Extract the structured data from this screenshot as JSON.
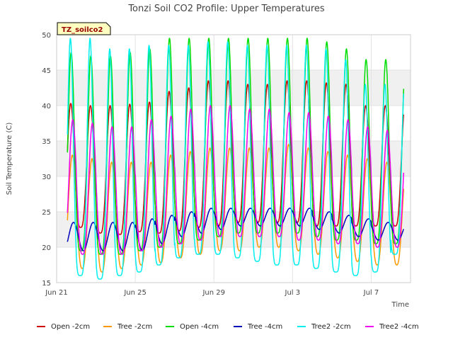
{
  "chart_data": {
    "type": "line",
    "title": "Tonzi Soil CO2 Profile: Upper Temperatures",
    "badge": "TZ_soilco2",
    "xlabel": "Time",
    "ylabel": "Soil Temperature (C)",
    "ylim": [
      15,
      50
    ],
    "yticks": [
      15,
      20,
      25,
      30,
      35,
      40,
      45,
      50
    ],
    "xlim": [
      "2021-06-21",
      "2021-07-09"
    ],
    "xticks": [
      {
        "date": "2021-06-21",
        "label": "Jun 21"
      },
      {
        "date": "2021-06-25",
        "label": "Jun 25"
      },
      {
        "date": "2021-06-29",
        "label": "Jun 29"
      },
      {
        "date": "2021-07-03",
        "label": "Jul 3"
      },
      {
        "date": "2021-07-07",
        "label": "Jul 7"
      }
    ],
    "grid": true,
    "legend_position": "bottom",
    "x_dates": [
      "2021-06-21",
      "2021-06-22",
      "2021-06-23",
      "2021-06-24",
      "2021-06-25",
      "2021-06-26",
      "2021-06-27",
      "2021-06-28",
      "2021-06-29",
      "2021-06-30",
      "2021-07-01",
      "2021-07-02",
      "2021-07-03",
      "2021-07-04",
      "2021-07-05",
      "2021-07-06",
      "2021-07-07",
      "2021-07-08"
    ],
    "series": [
      {
        "name": "Open -2cm",
        "color": "#cc0000",
        "daily_min": [
          22.5,
          22.8,
          22.0,
          21.8,
          22.2,
          22.0,
          22.3,
          22.8,
          23.0,
          23.5,
          23.5,
          23.5,
          23.5,
          23.0,
          23.0,
          23.0,
          23.0,
          23.0
        ],
        "daily_max": [
          40.3,
          40.0,
          40.0,
          40.2,
          40.5,
          42.0,
          42.5,
          43.5,
          43.5,
          43.0,
          43.0,
          43.5,
          43.5,
          43.2,
          43.0,
          40.0,
          40.0,
          40.0
        ]
      },
      {
        "name": "Tree -2cm",
        "color": "#ff9900",
        "daily_min": [
          17.5,
          17.0,
          16.5,
          17.0,
          17.5,
          17.8,
          18.5,
          19.0,
          19.5,
          19.5,
          20.0,
          20.0,
          19.5,
          19.0,
          18.5,
          18.0,
          17.5,
          17.5
        ],
        "daily_max": [
          33.0,
          32.5,
          32.0,
          32.0,
          32.0,
          33.0,
          33.5,
          34.0,
          34.0,
          34.0,
          34.0,
          34.5,
          34.0,
          33.5,
          33.0,
          32.5,
          32.0,
          32.0
        ]
      },
      {
        "name": "Open -4cm",
        "color": "#00dd00",
        "daily_min": [
          20.0,
          19.5,
          19.0,
          19.0,
          19.5,
          20.0,
          20.5,
          21.0,
          21.5,
          22.0,
          22.0,
          22.0,
          22.0,
          21.5,
          21.0,
          21.0,
          20.5,
          20.5
        ],
        "daily_max": [
          47.5,
          47.0,
          47.0,
          47.5,
          48.0,
          49.5,
          49.5,
          49.5,
          49.5,
          49.5,
          49.5,
          49.5,
          49.5,
          49.0,
          48.0,
          46.5,
          46.5,
          46.0
        ]
      },
      {
        "name": "Tree -4cm",
        "color": "#0000bb",
        "daily_min": [
          19.5,
          19.5,
          19.5,
          19.5,
          19.5,
          20.5,
          21.5,
          22.0,
          22.5,
          23.0,
          23.0,
          23.0,
          23.0,
          22.5,
          22.0,
          21.5,
          21.0,
          21.0
        ],
        "daily_max": [
          23.5,
          23.5,
          23.5,
          23.5,
          24.0,
          24.5,
          25.0,
          25.5,
          25.5,
          25.5,
          25.5,
          25.5,
          25.5,
          25.0,
          24.5,
          24.0,
          23.5,
          23.5
        ]
      },
      {
        "name": "Tree2 -2cm",
        "color": "#00eeee",
        "daily_min": [
          16.5,
          16.0,
          15.5,
          16.0,
          16.5,
          17.5,
          18.5,
          19.0,
          19.0,
          18.5,
          18.0,
          17.5,
          17.5,
          17.0,
          16.5,
          16.0,
          16.5,
          19.0
        ],
        "daily_max": [
          49.5,
          49.5,
          48.0,
          48.0,
          48.5,
          48.5,
          48.5,
          49.0,
          49.0,
          48.5,
          48.5,
          48.5,
          48.5,
          48.0,
          46.5,
          43.0,
          43.0,
          43.0
        ]
      },
      {
        "name": "Tree2 -4cm",
        "color": "#ee00ee",
        "daily_min": [
          19.5,
          19.0,
          19.0,
          19.0,
          19.5,
          20.0,
          20.5,
          21.0,
          21.5,
          21.5,
          21.5,
          21.5,
          21.0,
          21.0,
          20.5,
          20.5,
          20.0,
          20.0
        ],
        "daily_max": [
          38.0,
          37.5,
          37.0,
          37.0,
          38.0,
          38.5,
          39.5,
          40.0,
          40.0,
          39.5,
          39.5,
          39.0,
          39.0,
          38.5,
          38.0,
          37.0,
          36.5,
          36.5
        ]
      }
    ]
  }
}
